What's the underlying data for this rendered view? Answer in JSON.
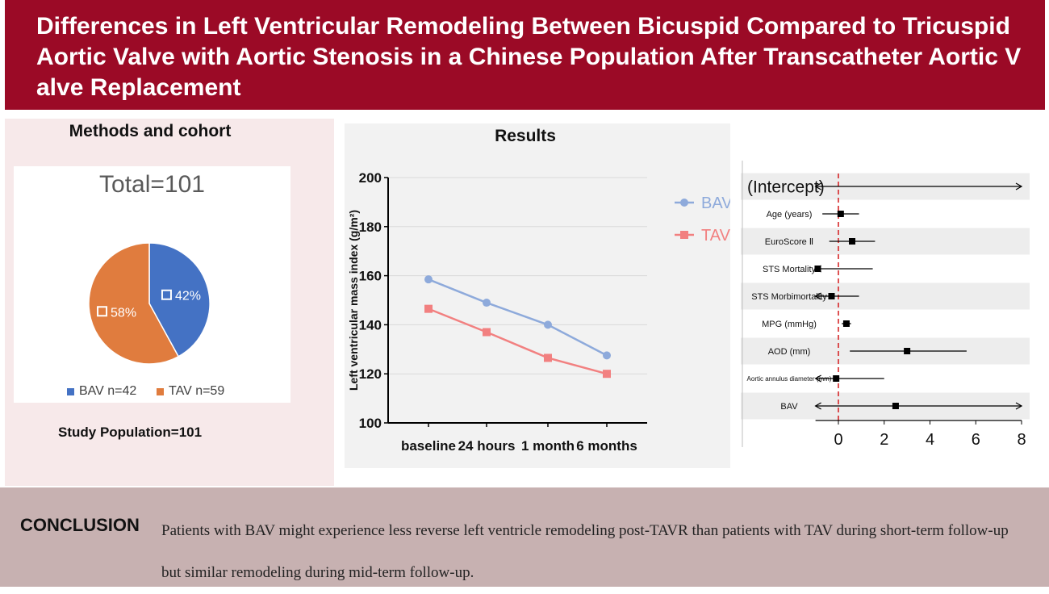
{
  "header": {
    "title": "Differences in Left Ventricular Remodeling Between Bicuspid Compared to Tricuspid Aortic Valve with Aortic Stenosis in a Chinese Population After Transcatheter Aortic Valve Replacement"
  },
  "methods": {
    "title": "Methods and cohort",
    "study_population": "Study Population=101"
  },
  "results": {
    "title": "Results"
  },
  "conclusion": {
    "label": "CONCLUSION",
    "text": "Patients with BAV might experience less reverse left ventricle remodeling post-TAVR than patients with TAV during short-term follow-up but similar remodeling during mid-term follow-up."
  },
  "colors": {
    "header_bg": "#9b0a26",
    "bav_pie": "#4472c4",
    "tav_pie": "#e07c3e",
    "bav_line": "#8eaadb",
    "tav_line": "#f28080",
    "ref_line": "#d62728"
  },
  "chart_data": [
    {
      "type": "pie",
      "title": "Total=101",
      "slices": [
        {
          "label": "BAV n=42",
          "value": 42,
          "display": "42%",
          "color": "#4472c4"
        },
        {
          "label": "TAV n=59",
          "value": 58,
          "display": "58%",
          "color": "#e07c3e"
        }
      ]
    },
    {
      "type": "line",
      "categories": [
        "baseline",
        "24 hours",
        "1 month",
        "6 months"
      ],
      "series": [
        {
          "name": "BAV",
          "values": [
            158.5,
            149,
            140,
            127.5
          ],
          "color": "#8eaadb",
          "marker": "circle"
        },
        {
          "name": "TAV",
          "values": [
            146.5,
            137,
            126.5,
            120
          ],
          "color": "#f28080",
          "marker": "square"
        }
      ],
      "ylabel": "Left ventricular mass index (g/m²)",
      "ylim": [
        100,
        200
      ],
      "yticks": [
        100,
        120,
        140,
        160,
        180,
        200
      ],
      "legend": "right"
    },
    {
      "type": "scatter",
      "subtype": "forest",
      "rows": [
        {
          "label": "(Intercept)",
          "estimate": null,
          "low": null,
          "high": null,
          "arrow_left": true,
          "arrow_right": true,
          "shaded": true
        },
        {
          "label": "Age (years)",
          "estimate": 0.1,
          "low": -0.7,
          "high": 0.9,
          "arrow_left": false,
          "arrow_right": false,
          "shaded": false
        },
        {
          "label": "EuroScore Ⅱ",
          "estimate": 0.6,
          "low": -0.4,
          "high": 1.6,
          "arrow_left": false,
          "arrow_right": false,
          "shaded": true
        },
        {
          "label": "STS Mortality",
          "estimate": -0.9,
          "low": -1.0,
          "high": 1.5,
          "arrow_left": true,
          "arrow_right": false,
          "shaded": false
        },
        {
          "label": "STS Morbimortality",
          "estimate": -0.3,
          "low": -1.0,
          "high": 0.9,
          "arrow_left": true,
          "arrow_right": false,
          "shaded": true
        },
        {
          "label": "MPG (mmHg)",
          "estimate": 0.35,
          "low": 0.15,
          "high": 0.55,
          "arrow_left": false,
          "arrow_right": false,
          "shaded": false
        },
        {
          "label": "AOD (mm)",
          "estimate": 3.0,
          "low": 0.5,
          "high": 5.6,
          "arrow_left": false,
          "arrow_right": false,
          "shaded": true
        },
        {
          "label": "Aortic annulus diameter (mm)",
          "estimate": -0.1,
          "low": -1.0,
          "high": 2.0,
          "arrow_left": true,
          "arrow_right": false,
          "shaded": false
        },
        {
          "label": "BAV",
          "estimate": 2.5,
          "low": -1.0,
          "high": 8.0,
          "arrow_left": true,
          "arrow_right": true,
          "shaded": true
        }
      ],
      "xlim": [
        -1,
        8
      ],
      "xticks": [
        0,
        2,
        4,
        6,
        8
      ],
      "reference_line": 0
    }
  ]
}
